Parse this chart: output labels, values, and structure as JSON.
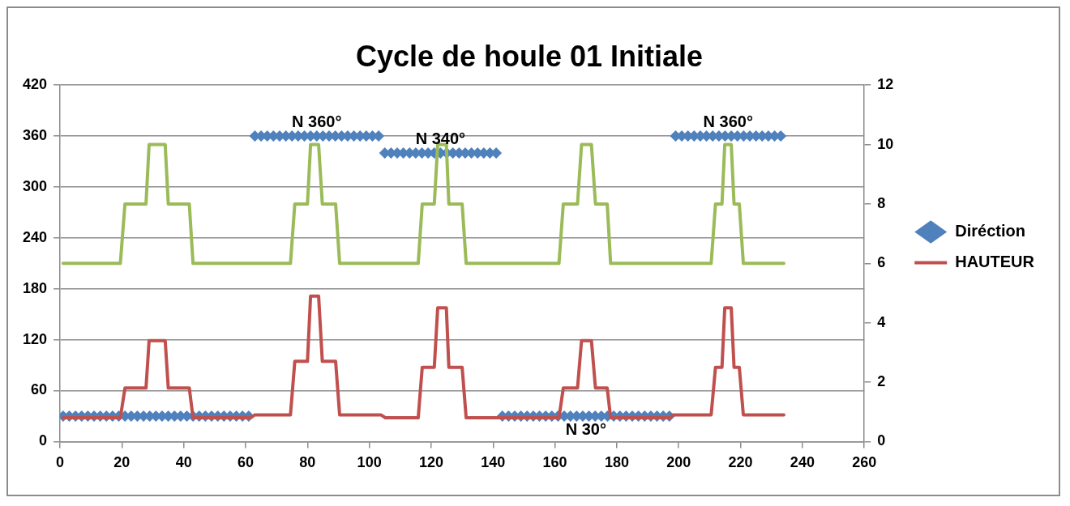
{
  "chart_data": {
    "type": "line",
    "title": "Cycle de houle 01 Initiale",
    "xlim": [
      0,
      260
    ],
    "xticks": [
      0,
      20,
      40,
      60,
      80,
      100,
      120,
      140,
      160,
      180,
      200,
      220,
      240,
      260
    ],
    "ylim": [
      0,
      420
    ],
    "yticks": [
      0,
      60,
      120,
      180,
      240,
      300,
      360,
      420
    ],
    "y2lim": [
      0,
      12
    ],
    "y2ticks": [
      0,
      2,
      4,
      6,
      8,
      10,
      12
    ],
    "grid": "y",
    "legend": "right",
    "series": [
      {
        "name": "Diréction",
        "type": "scatter",
        "marker": "diamond",
        "color": "#4f81bd",
        "x": [
          1,
          3,
          5,
          7,
          9,
          11,
          13,
          15,
          17,
          19,
          21,
          23,
          25,
          27,
          29,
          31,
          33,
          35,
          37,
          39,
          41,
          43,
          45,
          47,
          49,
          51,
          53,
          55,
          57,
          59,
          61,
          63,
          65,
          67,
          69,
          71,
          73,
          75,
          77,
          79,
          81,
          83,
          85,
          87,
          89,
          91,
          93,
          95,
          97,
          99,
          101,
          103,
          105,
          107,
          109,
          111,
          113,
          115,
          117,
          119,
          121,
          123,
          125,
          127,
          129,
          131,
          133,
          135,
          137,
          139,
          141,
          143,
          145,
          147,
          149,
          151,
          153,
          155,
          157,
          159,
          161,
          163,
          165,
          167,
          169,
          171,
          173,
          175,
          177,
          179,
          181,
          183,
          185,
          187,
          189,
          191,
          193,
          195,
          197,
          199,
          201,
          203,
          205,
          207,
          209,
          211,
          213,
          215,
          217,
          219,
          221,
          223,
          225,
          227,
          229,
          231,
          233
        ],
        "values": [
          30,
          30,
          30,
          30,
          30,
          30,
          30,
          30,
          30,
          30,
          30,
          30,
          30,
          30,
          30,
          30,
          30,
          30,
          30,
          30,
          30,
          30,
          30,
          30,
          30,
          30,
          30,
          30,
          30,
          30,
          30,
          360,
          360,
          360,
          360,
          360,
          360,
          360,
          360,
          360,
          360,
          360,
          360,
          360,
          360,
          360,
          360,
          360,
          360,
          360,
          360,
          360,
          340,
          340,
          340,
          340,
          340,
          340,
          340,
          340,
          340,
          340,
          340,
          340,
          340,
          340,
          340,
          340,
          340,
          340,
          340,
          30,
          30,
          30,
          30,
          30,
          30,
          30,
          30,
          30,
          30,
          30,
          30,
          30,
          30,
          30,
          30,
          30,
          30,
          30,
          30,
          30,
          30,
          30,
          30,
          30,
          30,
          30,
          30,
          360,
          360,
          360,
          360,
          360,
          360,
          360,
          360,
          360,
          360,
          360,
          360,
          360,
          360,
          360,
          360,
          360,
          360
        ]
      },
      {
        "name": "HAUTEUR",
        "type": "line",
        "axis": "y2",
        "marker": "none",
        "color": "#c0504d",
        "x": [
          1,
          19.5,
          21,
          27.8,
          28.8,
          34,
          35,
          41.8,
          43,
          61.6,
          63,
          74.5,
          75.9,
          80,
          81,
          83.6,
          84.8,
          89.1,
          90.4,
          103.7,
          105.2,
          115.8,
          117.1,
          121,
          122.1,
          124.9,
          125.7,
          130,
          131.3,
          161.3,
          162.7,
          167.3,
          168.6,
          171.8,
          173.1,
          176.9,
          178,
          197.2,
          198.2,
          210.5,
          211.9,
          214,
          214.9,
          217,
          217.9,
          219.6,
          220.9,
          234
        ],
        "values": [
          0.8,
          0.8,
          1.8,
          1.8,
          3.4,
          3.4,
          1.8,
          1.8,
          0.8,
          0.8,
          0.9,
          0.9,
          2.7,
          2.7,
          4.9,
          4.9,
          2.7,
          2.7,
          0.9,
          0.9,
          0.8,
          0.8,
          2.5,
          2.5,
          4.5,
          4.5,
          2.5,
          2.5,
          0.8,
          0.8,
          1.8,
          1.8,
          3.4,
          3.4,
          1.8,
          1.8,
          0.8,
          0.8,
          0.9,
          0.9,
          2.5,
          2.5,
          4.5,
          4.5,
          2.5,
          2.5,
          0.9,
          0.9
        ]
      },
      {
        "axis": "y2",
        "marker": "none",
        "color": "#9bbb59",
        "x": [
          1,
          19.5,
          21,
          27.8,
          28.8,
          34,
          35,
          41.8,
          43,
          74.5,
          75.9,
          80,
          81,
          83.6,
          84.8,
          89.1,
          90.4,
          115.8,
          117.1,
          121,
          122.1,
          124.9,
          125.7,
          130,
          131.3,
          161.3,
          162.7,
          167.3,
          168.6,
          171.8,
          173.1,
          176.9,
          178,
          210.5,
          211.9,
          214,
          214.9,
          217,
          217.9,
          219.6,
          220.9,
          234
        ],
        "values": [
          6,
          6,
          8,
          8,
          10,
          10,
          8,
          8,
          6,
          6,
          8,
          8,
          10,
          10,
          8,
          8,
          6,
          6,
          8,
          8,
          10,
          10,
          8,
          8,
          6,
          6,
          8,
          8,
          10,
          10,
          8,
          8,
          6,
          6,
          8,
          8,
          10,
          10,
          8,
          8,
          6,
          6
        ]
      }
    ],
    "annotations": [
      {
        "text": "N 360°",
        "x": 83,
        "y": 360
      },
      {
        "text": "N 340°",
        "x": 123,
        "y": 340
      },
      {
        "text": "N 360°",
        "x": 216,
        "y": 360
      },
      {
        "text": "N 30°",
        "x": 170,
        "y": 30
      }
    ]
  }
}
